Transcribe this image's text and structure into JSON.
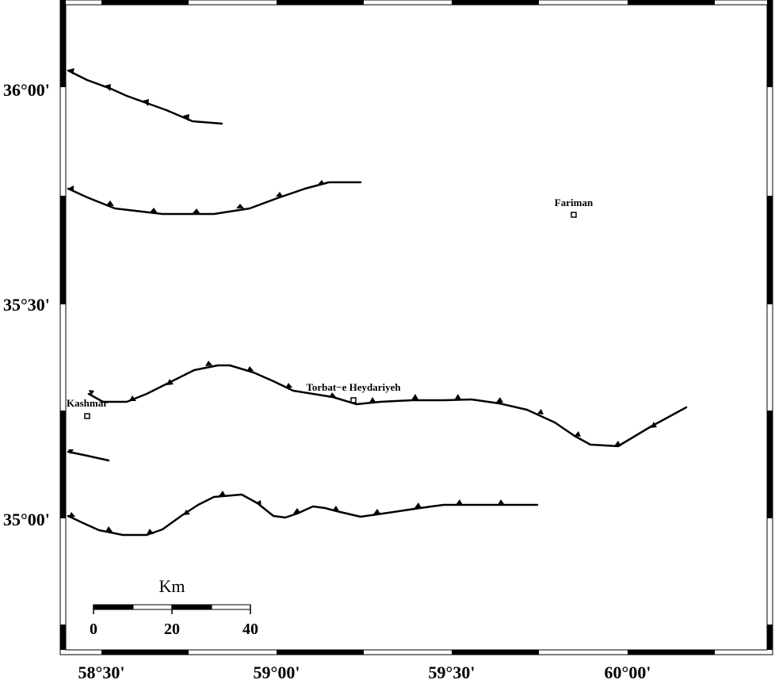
{
  "colors": {
    "frame": "#000000",
    "fault": "#000000",
    "background": "#ffffff"
  },
  "axes": {
    "x_ticks": [
      "58°30'",
      "59°00'",
      "59°30'",
      "60°00'"
    ],
    "y_ticks": [
      "36°00'",
      "35°30'",
      "35°00'"
    ]
  },
  "cities": [
    {
      "name": "Fariman",
      "icon": "square-marker-icon"
    },
    {
      "name": "Torbat−e Heydariyeh",
      "icon": "square-marker-icon"
    },
    {
      "name": "Kashmar",
      "icon": "square-marker-icon"
    }
  ],
  "scale_bar": {
    "unit": "Km",
    "labels": [
      "0",
      "20",
      "40"
    ]
  },
  "faults": [
    {
      "id": "fault-1",
      "type": "thrust"
    },
    {
      "id": "fault-2",
      "type": "thrust"
    },
    {
      "id": "fault-3",
      "type": "thrust"
    },
    {
      "id": "fault-4",
      "type": "plain"
    },
    {
      "id": "fault-5",
      "type": "thrust"
    }
  ]
}
